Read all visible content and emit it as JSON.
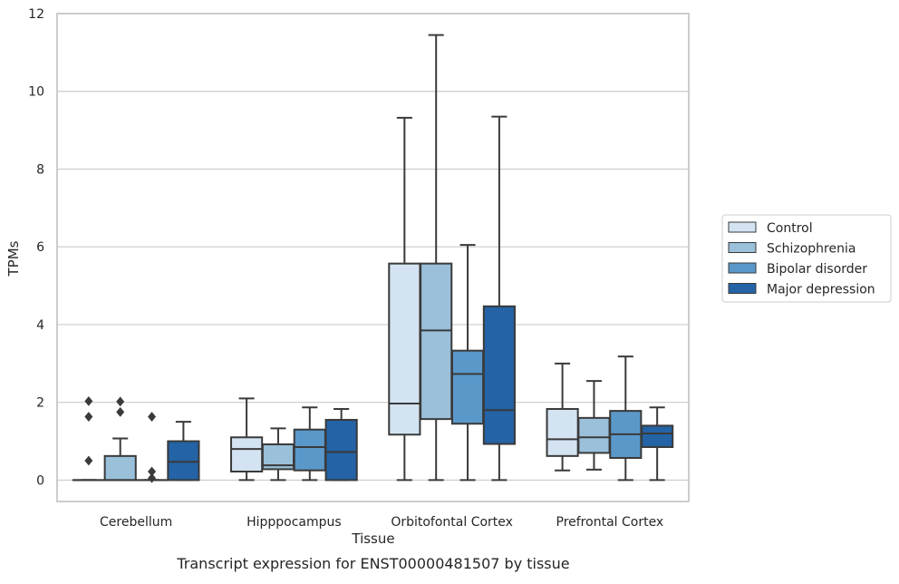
{
  "chart_data": {
    "type": "box",
    "title": "",
    "caption": "Transcript expression for ENST00000481507 by tissue",
    "xlabel": "Tissue",
    "ylabel": "TPMs",
    "ylim": [
      -0.55,
      12
    ],
    "yticks": [
      0,
      2,
      4,
      6,
      8,
      10,
      12
    ],
    "grid": "horizontal",
    "legend_position": "right",
    "categories": [
      "Cerebellum",
      "Hipppocampus",
      "Orbitofontal Cortex",
      "Prefrontal Cortex"
    ],
    "series": [
      {
        "name": "Control",
        "color": "#d3e3f1",
        "boxes": [
          {
            "whisker_low": 0,
            "q1": 0,
            "median": 0,
            "q3": 0,
            "whisker_high": 0,
            "outliers": [
              0.5,
              1.63,
              2.03
            ]
          },
          {
            "whisker_low": 0,
            "q1": 0.22,
            "median": 0.8,
            "q3": 1.1,
            "whisker_high": 2.1,
            "outliers": []
          },
          {
            "whisker_low": 0,
            "q1": 1.17,
            "median": 1.97,
            "q3": 5.57,
            "whisker_high": 9.32,
            "outliers": []
          },
          {
            "whisker_low": 0.25,
            "q1": 0.62,
            "median": 1.05,
            "q3": 1.83,
            "whisker_high": 3.0,
            "outliers": []
          }
        ]
      },
      {
        "name": "Schizophrenia",
        "color": "#9ac0da",
        "boxes": [
          {
            "whisker_low": 0,
            "q1": 0,
            "median": 0,
            "q3": 0.62,
            "whisker_high": 1.07,
            "outliers": [
              1.75,
              2.02
            ]
          },
          {
            "whisker_low": 0,
            "q1": 0.28,
            "median": 0.38,
            "q3": 0.92,
            "whisker_high": 1.33,
            "outliers": []
          },
          {
            "whisker_low": 0,
            "q1": 1.57,
            "median": 3.85,
            "q3": 5.57,
            "whisker_high": 11.45,
            "outliers": []
          },
          {
            "whisker_low": 0.27,
            "q1": 0.7,
            "median": 1.1,
            "q3": 1.6,
            "whisker_high": 2.55,
            "outliers": []
          }
        ]
      },
      {
        "name": "Bipolar disorder",
        "color": "#5a98c9",
        "boxes": [
          {
            "whisker_low": 0,
            "q1": 0,
            "median": 0,
            "q3": 0,
            "whisker_high": 0,
            "outliers": [
              0.05,
              0.22,
              1.63
            ]
          },
          {
            "whisker_low": 0,
            "q1": 0.25,
            "median": 0.85,
            "q3": 1.3,
            "whisker_high": 1.87,
            "outliers": []
          },
          {
            "whisker_low": 0,
            "q1": 1.45,
            "median": 2.73,
            "q3": 3.33,
            "whisker_high": 6.05,
            "outliers": []
          },
          {
            "whisker_low": 0,
            "q1": 0.57,
            "median": 1.18,
            "q3": 1.78,
            "whisker_high": 3.18,
            "outliers": []
          }
        ]
      },
      {
        "name": "Major depression",
        "color": "#2463a5",
        "boxes": [
          {
            "whisker_low": 0,
            "q1": 0,
            "median": 0.47,
            "q3": 1.0,
            "whisker_high": 1.5,
            "outliers": []
          },
          {
            "whisker_low": 0,
            "q1": 0,
            "median": 0.72,
            "q3": 1.55,
            "whisker_high": 1.83,
            "outliers": []
          },
          {
            "whisker_low": 0,
            "q1": 0.93,
            "median": 1.8,
            "q3": 4.47,
            "whisker_high": 9.35,
            "outliers": []
          },
          {
            "whisker_low": 0,
            "q1": 0.85,
            "median": 1.2,
            "q3": 1.4,
            "whisker_high": 1.87,
            "outliers": []
          }
        ]
      }
    ]
  }
}
